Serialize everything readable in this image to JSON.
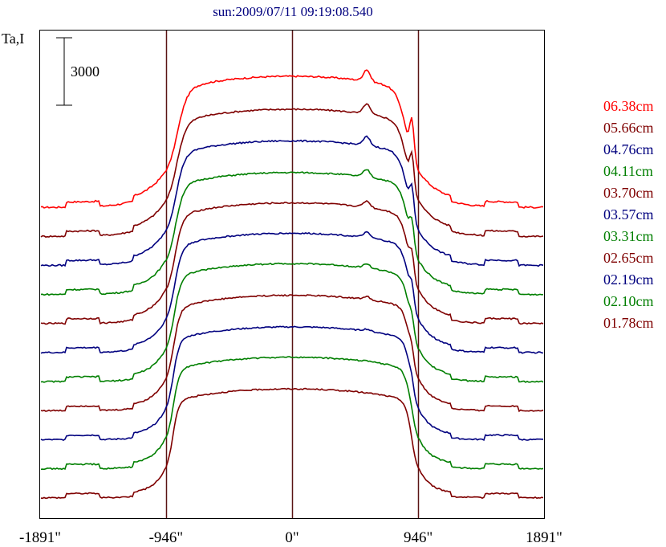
{
  "chart_data": {
    "type": "line",
    "title": "sun:2009/07/11 09:19:08.540",
    "ylabel": "Ta,I",
    "scale_bar_label": "3000",
    "scale_bar_value": 3000,
    "xlim": [
      -1891,
      1891
    ],
    "x_ticks": [
      {
        "value": -1891,
        "label": "-1891\""
      },
      {
        "value": -946,
        "label": "-946\""
      },
      {
        "value": 0,
        "label": "0\""
      },
      {
        "value": 946,
        "label": "946\""
      },
      {
        "value": 1891,
        "label": "1891\""
      }
    ],
    "vertical_lines_at": [
      -946,
      0,
      946
    ],
    "grid": false,
    "legend_position": "right",
    "series": [
      {
        "name": "06.38cm",
        "color": "#ff0000",
        "offset_index": 10,
        "amp": 1.0,
        "limb_width": 48,
        "bright_peak": 1.0
      },
      {
        "name": "05.66cm",
        "color": "#7f0000",
        "offset_index": 9,
        "amp": 0.97,
        "limb_width": 45,
        "bright_peak": 0.9
      },
      {
        "name": "04.76cm",
        "color": "#00007f",
        "offset_index": 8,
        "amp": 0.95,
        "limb_width": 42,
        "bright_peak": 0.8
      },
      {
        "name": "04.11cm",
        "color": "#007f00",
        "offset_index": 7,
        "amp": 0.93,
        "limb_width": 40,
        "bright_peak": 0.7
      },
      {
        "name": "03.70cm",
        "color": "#7f0000",
        "offset_index": 6,
        "amp": 0.92,
        "limb_width": 38,
        "bright_peak": 0.6
      },
      {
        "name": "03.57cm",
        "color": "#00007f",
        "offset_index": 5,
        "amp": 0.91,
        "limb_width": 36,
        "bright_peak": 0.5
      },
      {
        "name": "03.31cm",
        "color": "#007f00",
        "offset_index": 4,
        "amp": 0.9,
        "limb_width": 34,
        "bright_peak": 0.4
      },
      {
        "name": "02.65cm",
        "color": "#7f0000",
        "offset_index": 3,
        "amp": 0.88,
        "limb_width": 32,
        "bright_peak": 0.3
      },
      {
        "name": "02.19cm",
        "color": "#00007f",
        "offset_index": 2,
        "amp": 0.86,
        "limb_width": 30,
        "bright_peak": 0.2
      },
      {
        "name": "02.10cm",
        "color": "#007f00",
        "offset_index": 1,
        "amp": 0.85,
        "limb_width": 30,
        "bright_peak": 0.1
      },
      {
        "name": "01.78cm",
        "color": "#7f0000",
        "offset_index": 0,
        "amp": 0.83,
        "limb_width": 28,
        "bright_peak": 0.0
      }
    ]
  }
}
